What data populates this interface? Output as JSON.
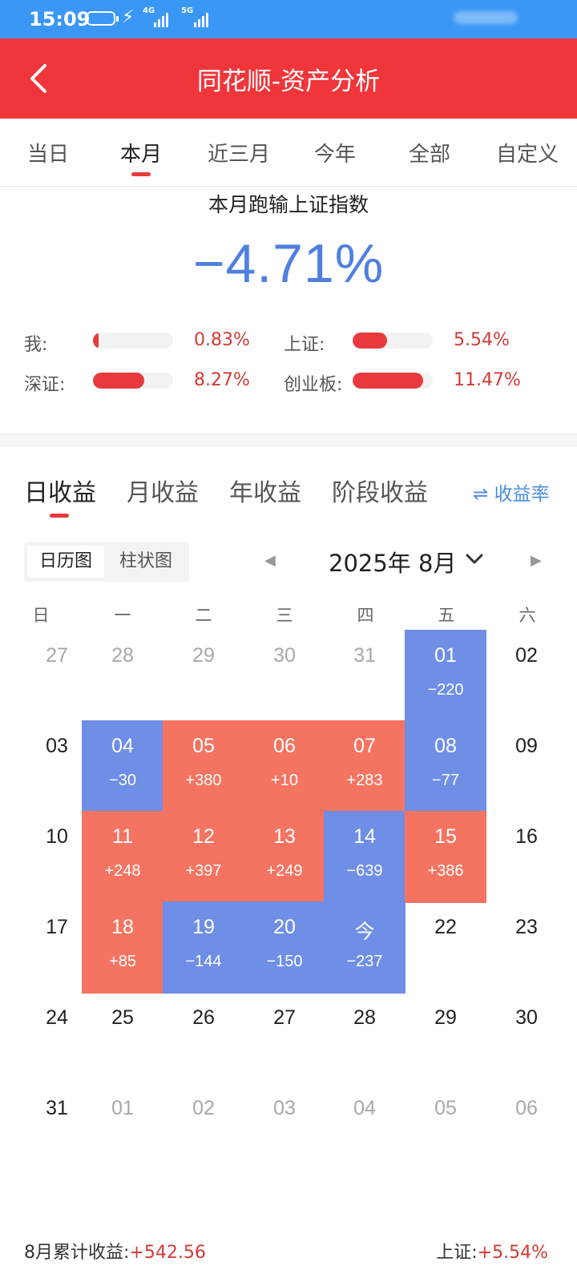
{
  "status_bar": {
    "time": "15:09",
    "network1": "4G",
    "network2": "5G"
  },
  "header": {
    "title": "同花顺-资产分析"
  },
  "period_tabs": [
    {
      "label": "当日"
    },
    {
      "label": "本月"
    },
    {
      "label": "近三月"
    },
    {
      "label": "今年"
    },
    {
      "label": "全部"
    },
    {
      "label": "自定义"
    }
  ],
  "summary": {
    "title": "本月跑输上证指数",
    "value": "−4.71%",
    "value_color": "#4f80e0",
    "comparisons": [
      {
        "label": "我:",
        "value": "0.83%",
        "fill": 0.07
      },
      {
        "label": "上证:",
        "value": "5.54%",
        "fill": 0.43
      },
      {
        "label": "深证:",
        "value": "8.27%",
        "fill": 0.64
      },
      {
        "label": "创业板:",
        "value": "11.47%",
        "fill": 0.88
      }
    ]
  },
  "income_tabs": [
    {
      "label": "日收益"
    },
    {
      "label": "月收益"
    },
    {
      "label": "年收益"
    },
    {
      "label": "阶段收益"
    }
  ],
  "rate_link": "收益率",
  "view_toggle": {
    "calendar": "日历图",
    "bar": "柱状图"
  },
  "month_label": "2025年 8月",
  "weekdays": [
    "日",
    "一",
    "二",
    "三",
    "四",
    "五",
    "六"
  ],
  "calendar": [
    [
      {
        "day": "27",
        "type": "other"
      },
      {
        "day": "28",
        "type": "other"
      },
      {
        "day": "29",
        "type": "other"
      },
      {
        "day": "30",
        "type": "other"
      },
      {
        "day": "31",
        "type": "other"
      },
      {
        "day": "01",
        "value": "−220",
        "type": "neg"
      },
      {
        "day": "02",
        "type": "cur"
      }
    ],
    [
      {
        "day": "03",
        "type": "cur"
      },
      {
        "day": "04",
        "value": "−30",
        "type": "neg"
      },
      {
        "day": "05",
        "value": "+380",
        "type": "pos"
      },
      {
        "day": "06",
        "value": "+10",
        "type": "pos"
      },
      {
        "day": "07",
        "value": "+283",
        "type": "pos"
      },
      {
        "day": "08",
        "value": "−77",
        "type": "neg"
      },
      {
        "day": "09",
        "type": "cur"
      }
    ],
    [
      {
        "day": "10",
        "type": "cur"
      },
      {
        "day": "11",
        "value": "+248",
        "type": "pos"
      },
      {
        "day": "12",
        "value": "+397",
        "type": "pos"
      },
      {
        "day": "13",
        "value": "+249",
        "type": "pos"
      },
      {
        "day": "14",
        "value": "−639",
        "type": "neg"
      },
      {
        "day": "15",
        "value": "+386",
        "type": "pos"
      },
      {
        "day": "16",
        "type": "cur"
      }
    ],
    [
      {
        "day": "17",
        "type": "cur"
      },
      {
        "day": "18",
        "value": "+85",
        "type": "pos"
      },
      {
        "day": "19",
        "value": "−144",
        "type": "neg"
      },
      {
        "day": "20",
        "value": "−150",
        "type": "neg"
      },
      {
        "day": "今",
        "value": "−237",
        "type": "neg"
      },
      {
        "day": "22",
        "type": "cur"
      },
      {
        "day": "23",
        "type": "cur"
      }
    ],
    [
      {
        "day": "24",
        "type": "cur"
      },
      {
        "day": "25",
        "type": "cur"
      },
      {
        "day": "26",
        "type": "cur"
      },
      {
        "day": "27",
        "type": "cur"
      },
      {
        "day": "28",
        "type": "cur"
      },
      {
        "day": "29",
        "type": "cur"
      },
      {
        "day": "30",
        "type": "cur"
      }
    ],
    [
      {
        "day": "31",
        "type": "cur"
      },
      {
        "day": "01",
        "type": "other"
      },
      {
        "day": "02",
        "type": "other"
      },
      {
        "day": "03",
        "type": "other"
      },
      {
        "day": "04",
        "type": "other"
      },
      {
        "day": "05",
        "type": "other"
      },
      {
        "day": "06",
        "type": "other"
      }
    ]
  ],
  "colors": {
    "positive": "#f57461",
    "negative": "#6f8ee6",
    "brand_red": "#f0363b",
    "status_bar": "#3a97f6"
  },
  "footer": {
    "left_label": "8月累计收益:",
    "left_value": "+542.56",
    "right_label": "上证:",
    "right_value": "+5.54%"
  }
}
